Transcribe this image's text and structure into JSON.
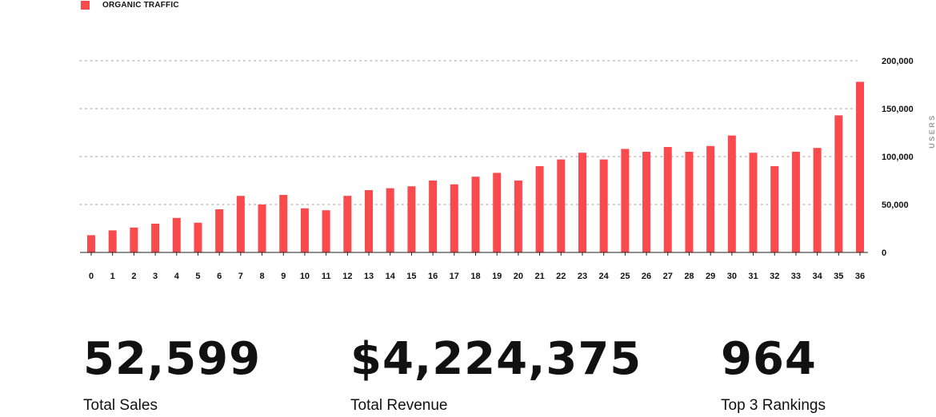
{
  "legend": {
    "label": "ORGANIC TRAFFIC"
  },
  "colors": {
    "bar": "#f94a4d",
    "grid": "#bdbdbd",
    "axis": "#222222",
    "text": "#111111"
  },
  "chart_data": {
    "type": "bar",
    "categories": [
      "0",
      "1",
      "2",
      "3",
      "4",
      "5",
      "6",
      "7",
      "8",
      "9",
      "10",
      "11",
      "12",
      "13",
      "14",
      "15",
      "16",
      "17",
      "18",
      "19",
      "20",
      "21",
      "22",
      "23",
      "24",
      "25",
      "26",
      "27",
      "28",
      "29",
      "30",
      "31",
      "32",
      "33",
      "34",
      "35",
      "36"
    ],
    "series": [
      {
        "name": "ORGANIC TRAFFIC",
        "values": [
          18000,
          23000,
          26000,
          30000,
          36000,
          31000,
          45000,
          59000,
          50000,
          60000,
          46000,
          44000,
          59000,
          65000,
          67000,
          69000,
          75000,
          71000,
          79000,
          83000,
          75000,
          90000,
          97000,
          104000,
          97000,
          108000,
          105000,
          110000,
          105000,
          111000,
          122000,
          104000,
          90000,
          105000,
          109000,
          143000,
          178000
        ]
      }
    ],
    "ylabel": "USERS",
    "ylim": [
      0,
      200000
    ],
    "yticks": [
      "0",
      "50,000",
      "100,000",
      "150,000",
      "200,000"
    ],
    "ytick_values": [
      0,
      50000,
      100000,
      150000,
      200000
    ],
    "y_axis_side": "right",
    "grid": true,
    "legend_position": "top-left"
  },
  "stats": [
    {
      "value": "52,599",
      "label": "Total Sales"
    },
    {
      "value": "$4,224,375",
      "label": "Total Revenue"
    },
    {
      "value": "964",
      "label": "Top 3 Rankings"
    }
  ]
}
